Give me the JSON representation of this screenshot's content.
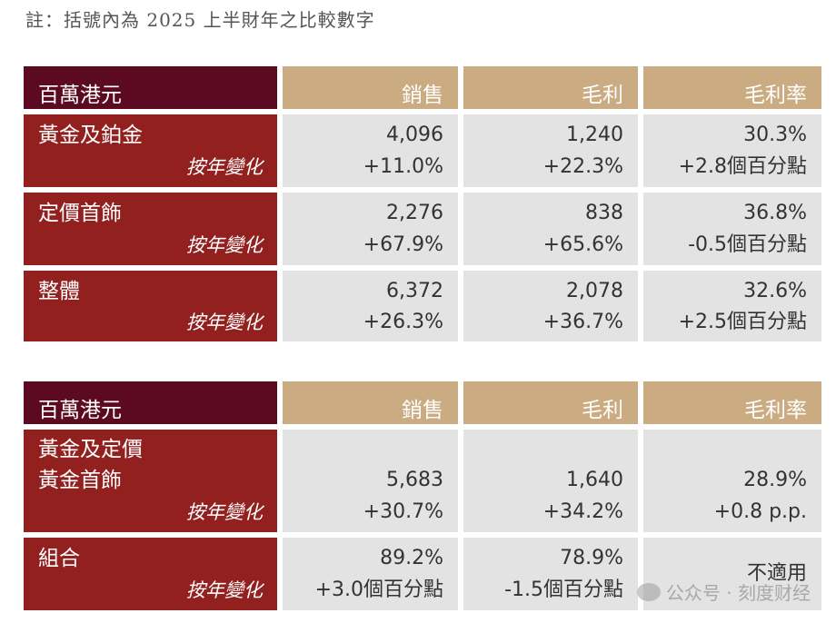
{
  "note": "註：括號內為 2025 上半財年之比較數字",
  "headers": {
    "unit": "百萬港元",
    "sales": "銷售",
    "gross_profit": "毛利",
    "margin": "毛利率"
  },
  "yoy_label": "按年變化",
  "table1": {
    "rows": [
      {
        "name": "黃金及鉑金",
        "sales": "4,096",
        "sales_yoy": "+11.0%",
        "gp": "1,240",
        "gp_yoy": "+22.3%",
        "margin": "30.3%",
        "margin_yoy": "+2.8個百分點"
      },
      {
        "name": "定價首飾",
        "sales": "2,276",
        "sales_yoy": "+67.9%",
        "gp": "838",
        "gp_yoy": "+65.6%",
        "margin": "36.8%",
        "margin_yoy": "-0.5個百分點"
      },
      {
        "name": "整體",
        "sales": "6,372",
        "sales_yoy": "+26.3%",
        "gp": "2,078",
        "gp_yoy": "+36.7%",
        "margin": "32.6%",
        "margin_yoy": "+2.5個百分點"
      }
    ]
  },
  "table2": {
    "rows": [
      {
        "name_line1": "黃金及定價",
        "name_line2": "黃金首飾",
        "sales": "5,683",
        "sales_yoy": "+30.7%",
        "gp": "1,640",
        "gp_yoy": "+34.2%",
        "margin": "28.9%",
        "margin_yoy": "+0.8 p.p."
      },
      {
        "name": "組合",
        "sales": "89.2%",
        "sales_yoy": "+3.0個百分點",
        "gp": "78.9%",
        "gp_yoy": "-1.5個百分點",
        "margin": "不適用"
      }
    ]
  },
  "watermark": "公众号 · 刻度财经"
}
